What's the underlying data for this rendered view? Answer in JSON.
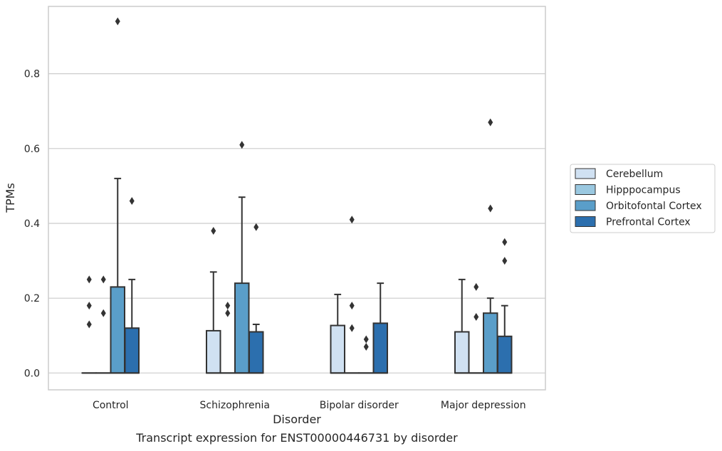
{
  "caption": "Transcript expression for ENST00000446731 by disorder",
  "chart_data": {
    "type": "box",
    "xlabel": "Disorder",
    "ylabel": "TPMs",
    "ylim": [
      -0.045,
      0.98
    ],
    "yticks": [
      0.0,
      0.2,
      0.4,
      0.6,
      0.8
    ],
    "ytick_labels": [
      "0.0",
      "0.2",
      "0.4",
      "0.6",
      "0.8"
    ],
    "grid": "horizontal",
    "legend_position": "right",
    "categories": [
      "Control",
      "Schizophrenia",
      "Bipolar disorder",
      "Major depression"
    ],
    "series": [
      {
        "name": "Cerebellum",
        "color": "#d0e1f2",
        "boxes": [
          {
            "q1": 0,
            "q3": 0,
            "median": 0,
            "whisker_low": 0,
            "whisker_high": 0,
            "outliers": [
              0.13,
              0.18,
              0.25
            ]
          },
          {
            "q1": 0,
            "q3": 0.113,
            "median": 0,
            "whisker_low": 0,
            "whisker_high": 0.27,
            "outliers": [
              0.38
            ]
          },
          {
            "q1": 0,
            "q3": 0.127,
            "median": 0,
            "whisker_low": 0,
            "whisker_high": 0.21,
            "outliers": []
          },
          {
            "q1": 0,
            "q3": 0.11,
            "median": 0,
            "whisker_low": 0,
            "whisker_high": 0.25,
            "outliers": []
          }
        ]
      },
      {
        "name": "Hipppocampus",
        "color": "#9ac8e0",
        "boxes": [
          {
            "q1": 0,
            "q3": 0,
            "median": 0,
            "whisker_low": 0,
            "whisker_high": 0,
            "outliers": [
              0.16,
              0.25
            ]
          },
          {
            "q1": 0,
            "q3": 0,
            "median": 0,
            "whisker_low": 0,
            "whisker_high": 0,
            "outliers": [
              0.16,
              0.18
            ]
          },
          {
            "q1": 0,
            "q3": 0,
            "median": 0,
            "whisker_low": 0,
            "whisker_high": 0,
            "outliers": [
              0.12,
              0.18,
              0.41
            ]
          },
          {
            "q1": 0,
            "q3": 0,
            "median": 0,
            "whisker_low": 0,
            "whisker_high": 0,
            "outliers": [
              0.15,
              0.23
            ]
          }
        ]
      },
      {
        "name": "Orbitofontal Cortex",
        "color": "#5a9ec9",
        "boxes": [
          {
            "q1": 0,
            "q3": 0.23,
            "median": 0,
            "whisker_low": 0,
            "whisker_high": 0.52,
            "outliers": [
              0.94
            ]
          },
          {
            "q1": 0,
            "q3": 0.24,
            "median": 0,
            "whisker_low": 0,
            "whisker_high": 0.47,
            "outliers": [
              0.61
            ]
          },
          {
            "q1": 0,
            "q3": 0,
            "median": 0,
            "whisker_low": 0,
            "whisker_high": 0,
            "outliers": [
              0.07,
              0.09
            ]
          },
          {
            "q1": 0,
            "q3": 0.16,
            "median": 0,
            "whisker_low": 0,
            "whisker_high": 0.2,
            "outliers": [
              0.44,
              0.67
            ]
          }
        ]
      },
      {
        "name": "Prefrontal Cortex",
        "color": "#2c6fae",
        "boxes": [
          {
            "q1": 0,
            "q3": 0.12,
            "median": 0,
            "whisker_low": 0,
            "whisker_high": 0.25,
            "outliers": [
              0.46
            ]
          },
          {
            "q1": 0,
            "q3": 0.11,
            "median": 0,
            "whisker_low": 0,
            "whisker_high": 0.13,
            "outliers": [
              0.39
            ]
          },
          {
            "q1": 0,
            "q3": 0.133,
            "median": 0,
            "whisker_low": 0,
            "whisker_high": 0.24,
            "outliers": []
          },
          {
            "q1": 0,
            "q3": 0.098,
            "median": 0,
            "whisker_low": 0,
            "whisker_high": 0.18,
            "outliers": [
              0.3,
              0.35
            ]
          }
        ]
      }
    ]
  }
}
